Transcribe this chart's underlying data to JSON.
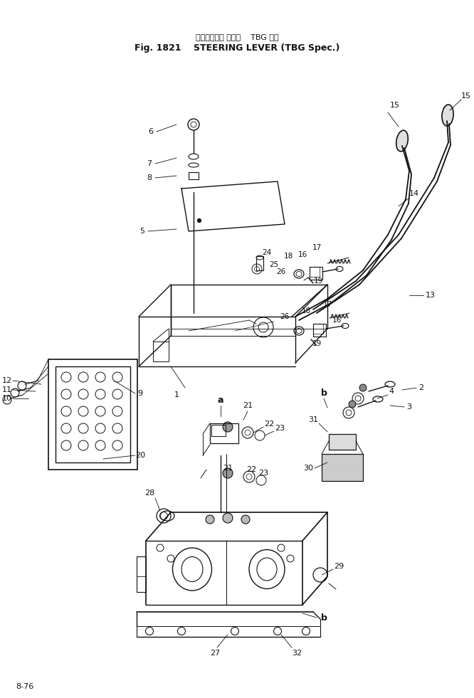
{
  "title_japanese": "ステアリング レバー    TBG 仕様",
  "title_english": "Fig. 1821    STEERING LEVER (TBG Spec.)",
  "page_number": "8-76",
  "bg": "#f5f5f0",
  "lc": "#111111",
  "figsize": [
    6.66,
    9.81
  ],
  "dpi": 100
}
